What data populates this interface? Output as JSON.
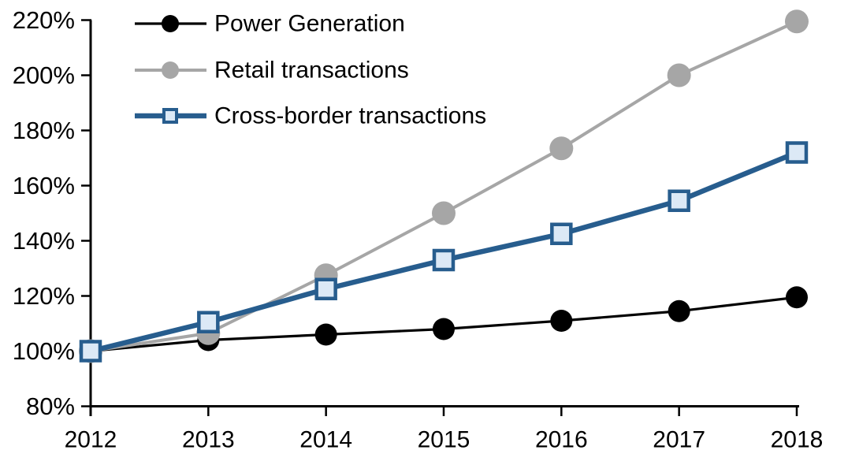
{
  "chart_data": {
    "type": "line",
    "title": "",
    "xlabel": "",
    "ylabel": "",
    "x": [
      2012,
      2013,
      2014,
      2015,
      2016,
      2017,
      2018
    ],
    "series": [
      {
        "name": "Power Generation",
        "color": "#000000",
        "marker": "circle",
        "marker_fill": "#000000",
        "line_width": 3.2,
        "values": [
          100,
          104,
          106,
          108,
          111,
          114.5,
          119.5
        ]
      },
      {
        "name": "Retail transactions",
        "color": "#a6a6a6",
        "marker": "circle",
        "marker_fill": "#a6a6a6",
        "line_width": 4,
        "values": [
          100,
          106.5,
          127.5,
          150,
          173.5,
          200,
          219.5
        ]
      },
      {
        "name": "Cross-border transactions",
        "color": "#275d8e",
        "marker": "square",
        "marker_fill": "#dce9f6",
        "line_width": 6.5,
        "values": [
          100,
          110.5,
          122.5,
          133,
          142.5,
          154.5,
          172
        ]
      }
    ],
    "axes": {
      "y_tick_labels": [
        "220%",
        "200%",
        "180%",
        "160%",
        "140%",
        "120%",
        "100%",
        "80%"
      ],
      "y_tick_values": [
        220,
        200,
        180,
        160,
        140,
        120,
        100,
        80
      ],
      "x_tick_labels": [
        "2012",
        "2013",
        "2014",
        "2015",
        "2016",
        "2017",
        "2018"
      ],
      "ylim": [
        80,
        220
      ],
      "ytick_format": "percent"
    },
    "legend_position": "top-left",
    "grid": false,
    "axis_color": "#000000",
    "background_color": "#ffffff"
  }
}
